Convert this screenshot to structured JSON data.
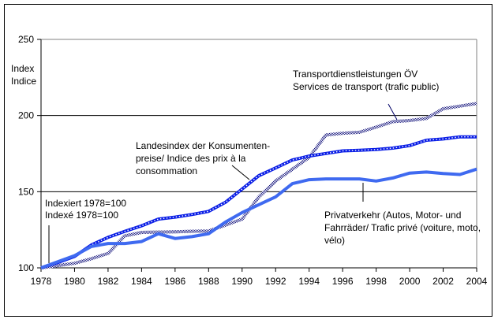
{
  "chart_data": {
    "type": "line",
    "title": "",
    "xlabel": "",
    "ylabel": "Index\nIndice",
    "ylabel_lines": [
      "Index",
      "Indice"
    ],
    "xlim": [
      1978,
      2004
    ],
    "ylim": [
      100,
      250
    ],
    "x_ticks": [
      "1978",
      "1980",
      "1982",
      "1984",
      "1986",
      "1988",
      "1990",
      "1992",
      "1994",
      "1996",
      "1998",
      "2000",
      "2002",
      "2004"
    ],
    "y_ticks": [
      "100",
      "150",
      "200",
      "250"
    ],
    "grid": "horizontal",
    "legend": "none (inline annotations)",
    "x": [
      1978,
      1979,
      1980,
      1981,
      1982,
      1983,
      1984,
      1985,
      1986,
      1987,
      1988,
      1989,
      1990,
      1991,
      1992,
      1993,
      1994,
      1995,
      1996,
      1997,
      1998,
      1999,
      2000,
      2001,
      2002,
      2003,
      2004
    ],
    "series": [
      {
        "name": "Transportdienstleistungen ÖV / Services de transport (trafic public)",
        "style": "hatched",
        "color": "#1a1a80",
        "values": [
          100,
          101.5,
          103,
          106,
          109.5,
          121,
          123.3,
          123.5,
          123.7,
          124,
          124.2,
          128,
          132,
          146.6,
          157,
          164.8,
          172.5,
          187.2,
          188.4,
          189,
          192.4,
          196,
          196.7,
          198.1,
          204.5,
          206.2,
          207.9
        ]
      },
      {
        "name": "Landesindex der Konsumentenpreise / Indice des prix à la consommation",
        "style": "dotted-chain",
        "color": "#0a1ee6",
        "values": [
          100,
          103.5,
          107.5,
          115,
          120,
          124,
          127.6,
          132,
          133.3,
          135,
          137.1,
          143,
          151.8,
          160.5,
          165.6,
          170.8,
          173.4,
          175.1,
          176.8,
          177.2,
          177.7,
          178.6,
          180.3,
          183.8,
          184.6,
          186,
          186
        ]
      },
      {
        "name": "Privatverkehr (Autos, Motor- und Fahrräder) / Trafic privé (voiture, moto, vélo)",
        "style": "solid",
        "color": "#3f6af0",
        "values": [
          100,
          104,
          108,
          114,
          116,
          116,
          117.3,
          122.4,
          119.3,
          120.5,
          122.4,
          130,
          136.3,
          141.5,
          146.6,
          155.3,
          157.9,
          158.4,
          158.4,
          158.4,
          157,
          159,
          162.2,
          162.9,
          161.9,
          161.3,
          164.8
        ]
      }
    ],
    "annotations": [
      {
        "id": "transport",
        "lines": [
          "Transportdienstleistungen ÖV",
          "Services de transport (trafic public)"
        ]
      },
      {
        "id": "cpi",
        "lines": [
          "Landesindex der Konsumenten-",
          "preise/ Indice des prix à la",
          "consommation"
        ]
      },
      {
        "id": "private",
        "lines": [
          "Privatverkehr (Autos,  Motor- und",
          "Fahrräder/ Trafic privé (voiture, moto,",
          "vélo)"
        ]
      },
      {
        "id": "base",
        "lines": [
          "Indexiert 1978=100",
          "Indexé 1978=100"
        ]
      }
    ]
  }
}
